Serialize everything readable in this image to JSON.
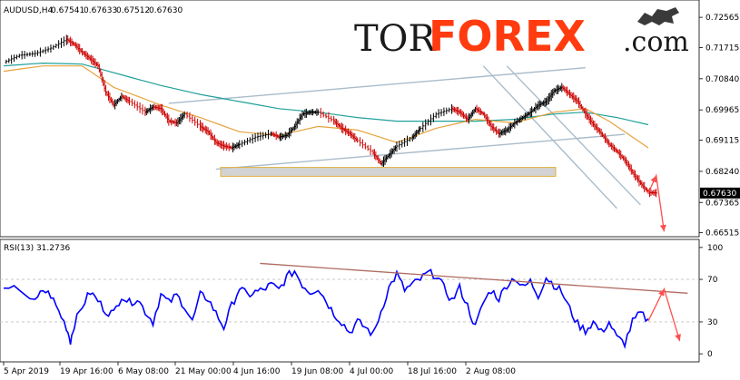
{
  "chart_data": [
    {
      "type": "line",
      "header": "AUDUSD,H4",
      "ohlc": [
        "0.67541",
        "0.67633",
        "0.67512",
        "0.67630"
      ],
      "last_price": "0.67630",
      "y_ticks": [
        "0.72565",
        "0.71715",
        "0.70840",
        "0.69965",
        "0.69115",
        "0.68240",
        "0.67365",
        "0.66515"
      ],
      "y_tick_values": [
        0.72565,
        0.71715,
        0.7084,
        0.69965,
        0.69115,
        0.6824,
        0.67365,
        0.66515
      ],
      "ylim": [
        0.6648,
        0.7295
      ],
      "x_labels": [
        "5 Apr 2019",
        "19 Apr 16:00",
        "6 May 08:00",
        "21 May 00:00",
        "4 Jun 16:00",
        "19 Jun 08:00",
        "4 Jul 00:00",
        "18 Jul 16:00",
        "2 Aug 08:00"
      ],
      "price_keypoints": [
        [
          0,
          0.713
        ],
        [
          2,
          0.715
        ],
        [
          4,
          0.7155
        ],
        [
          6,
          0.717
        ],
        [
          8,
          0.7195
        ],
        [
          9,
          0.718
        ],
        [
          10,
          0.7158
        ],
        [
          11,
          0.714
        ],
        [
          12,
          0.712
        ],
        [
          13,
          0.7045
        ],
        [
          14,
          0.701
        ],
        [
          15,
          0.7035
        ],
        [
          16,
          0.702
        ],
        [
          18,
          0.699
        ],
        [
          19,
          0.7005
        ],
        [
          20,
          0.7
        ],
        [
          21,
          0.6965
        ],
        [
          22,
          0.696
        ],
        [
          23,
          0.6985
        ],
        [
          25,
          0.695
        ],
        [
          26,
          0.6935
        ],
        [
          27,
          0.6905
        ],
        [
          28,
          0.6895
        ],
        [
          29,
          0.689
        ],
        [
          30,
          0.69
        ],
        [
          32,
          0.692
        ],
        [
          34,
          0.693
        ],
        [
          35,
          0.692
        ],
        [
          36,
          0.6925
        ],
        [
          37,
          0.695
        ],
        [
          38,
          0.6985
        ],
        [
          39,
          0.699
        ],
        [
          40,
          0.699
        ],
        [
          42,
          0.6965
        ],
        [
          43,
          0.6945
        ],
        [
          44,
          0.693
        ],
        [
          45,
          0.691
        ],
        [
          47,
          0.6875
        ],
        [
          48,
          0.6845
        ],
        [
          49,
          0.687
        ],
        [
          50,
          0.6895
        ],
        [
          52,
          0.692
        ],
        [
          53,
          0.6945
        ],
        [
          55,
          0.6985
        ],
        [
          57,
          0.7
        ],
        [
          58,
          0.699
        ],
        [
          59,
          0.697
        ],
        [
          60,
          0.7
        ],
        [
          61,
          0.6985
        ],
        [
          62,
          0.695
        ],
        [
          63,
          0.693
        ],
        [
          64,
          0.694
        ],
        [
          65,
          0.696
        ],
        [
          66,
          0.6975
        ],
        [
          67,
          0.699
        ],
        [
          68,
          0.701
        ],
        [
          69,
          0.702
        ],
        [
          70,
          0.705
        ],
        [
          71,
          0.706
        ],
        [
          72,
          0.704
        ],
        [
          73,
          0.702
        ],
        [
          74,
          0.6985
        ],
        [
          75,
          0.6955
        ],
        [
          76,
          0.693
        ],
        [
          77,
          0.69
        ],
        [
          78,
          0.688
        ],
        [
          79,
          0.6855
        ],
        [
          80,
          0.682
        ],
        [
          81,
          0.679
        ],
        [
          82,
          0.6765
        ],
        [
          83,
          0.6763
        ]
      ],
      "ma_fast": [
        [
          0,
          0.7105
        ],
        [
          5,
          0.712
        ],
        [
          10,
          0.712
        ],
        [
          14,
          0.706
        ],
        [
          20,
          0.701
        ],
        [
          25,
          0.6975
        ],
        [
          30,
          0.6935
        ],
        [
          35,
          0.6925
        ],
        [
          40,
          0.695
        ],
        [
          45,
          0.694
        ],
        [
          50,
          0.6905
        ],
        [
          55,
          0.6945
        ],
        [
          60,
          0.697
        ],
        [
          65,
          0.696
        ],
        [
          70,
          0.699
        ],
        [
          74,
          0.7
        ],
        [
          77,
          0.6965
        ],
        [
          80,
          0.692
        ],
        [
          82,
          0.689
        ]
      ],
      "ma_slow": [
        [
          0,
          0.712
        ],
        [
          5,
          0.7128
        ],
        [
          10,
          0.7125
        ],
        [
          15,
          0.7095
        ],
        [
          20,
          0.7065
        ],
        [
          25,
          0.704
        ],
        [
          30,
          0.702
        ],
        [
          35,
          0.7
        ],
        [
          40,
          0.699
        ],
        [
          45,
          0.6975
        ],
        [
          50,
          0.6965
        ],
        [
          55,
          0.6965
        ],
        [
          60,
          0.6965
        ],
        [
          65,
          0.697
        ],
        [
          70,
          0.6985
        ],
        [
          74,
          0.699
        ],
        [
          78,
          0.6975
        ],
        [
          82,
          0.6955
        ]
      ],
      "channel_upper": [
        [
          21,
          0.7015
        ],
        [
          74,
          0.7115
        ]
      ],
      "channel_lower": [
        [
          27,
          0.683
        ],
        [
          79,
          0.6928
        ]
      ],
      "down_channel_a": [
        [
          61,
          0.712
        ],
        [
          78,
          0.672
        ]
      ],
      "down_channel_b": [
        [
          64,
          0.712
        ],
        [
          81,
          0.673
        ]
      ],
      "support_zone": [
        0.681,
        0.6835
      ],
      "projection": [
        [
          82,
          0.6763
        ],
        [
          83,
          0.6812
        ],
        [
          84,
          0.6655
        ]
      ],
      "colors": {
        "price": "#000000",
        "down": "#cc0000",
        "ma_fast": "#e6a23c",
        "ma_slow": "#20a09a",
        "channel": "#a9bccb",
        "zone_fill": "#c8c8c8",
        "zone_border": "#e0b040",
        "arrow": "#ff4d4d"
      }
    },
    {
      "type": "line",
      "header": "RSI(13) 31.2736",
      "y_ticks": [
        "100",
        "70",
        "30",
        "0"
      ],
      "y_tick_values": [
        100,
        70,
        30,
        0
      ],
      "levels": [
        70,
        30
      ],
      "ylim": [
        -5,
        105
      ],
      "rsi_keypoints": [
        [
          0,
          58
        ],
        [
          2,
          62
        ],
        [
          4,
          48
        ],
        [
          5,
          60
        ],
        [
          6,
          55
        ],
        [
          7,
          40
        ],
        [
          8,
          25
        ],
        [
          8.5,
          12
        ],
        [
          9,
          28
        ],
        [
          10,
          45
        ],
        [
          11,
          58
        ],
        [
          12,
          50
        ],
        [
          13,
          40
        ],
        [
          14,
          38
        ],
        [
          15,
          55
        ],
        [
          16,
          48
        ],
        [
          17,
          52
        ],
        [
          18,
          40
        ],
        [
          19,
          30
        ],
        [
          20,
          56
        ],
        [
          21,
          48
        ],
        [
          22,
          55
        ],
        [
          23,
          45
        ],
        [
          24,
          30
        ],
        [
          25,
          55
        ],
        [
          26,
          52
        ],
        [
          27,
          38
        ],
        [
          28,
          25
        ],
        [
          29,
          45
        ],
        [
          30,
          62
        ],
        [
          31,
          55
        ],
        [
          32,
          58
        ],
        [
          33,
          60
        ],
        [
          34,
          65
        ],
        [
          35,
          60
        ],
        [
          36,
          72
        ],
        [
          37,
          78
        ],
        [
          38,
          65
        ],
        [
          39,
          58
        ],
        [
          40,
          62
        ],
        [
          41,
          50
        ],
        [
          42,
          38
        ],
        [
          43,
          30
        ],
        [
          44,
          20
        ],
        [
          45,
          30
        ],
        [
          46,
          25
        ],
        [
          47,
          18
        ],
        [
          48,
          40
        ],
        [
          49,
          62
        ],
        [
          50,
          75
        ],
        [
          51,
          60
        ],
        [
          52,
          65
        ],
        [
          53,
          70
        ],
        [
          54,
          76
        ],
        [
          55,
          74
        ],
        [
          56,
          62
        ],
        [
          57,
          50
        ],
        [
          58,
          62
        ],
        [
          59,
          45
        ],
        [
          60,
          25
        ],
        [
          61,
          48
        ],
        [
          62,
          60
        ],
        [
          63,
          52
        ],
        [
          64,
          65
        ],
        [
          65,
          72
        ],
        [
          66,
          62
        ],
        [
          67,
          68
        ],
        [
          68,
          55
        ],
        [
          69,
          72
        ],
        [
          70,
          65
        ],
        [
          71,
          58
        ],
        [
          72,
          42
        ],
        [
          73,
          28
        ],
        [
          74,
          22
        ],
        [
          75,
          30
        ],
        [
          76,
          20
        ],
        [
          77,
          30
        ],
        [
          78,
          15
        ],
        [
          79,
          10
        ],
        [
          80,
          30
        ],
        [
          81,
          38
        ],
        [
          82,
          31
        ]
      ],
      "trendline": [
        [
          40,
          85
        ],
        [
          87,
          57
        ]
      ],
      "projection": [
        [
          82,
          31
        ],
        [
          84,
          61
        ],
        [
          86,
          12
        ]
      ],
      "colors": {
        "rsi": "#0000ff",
        "trend": "#b06a60",
        "arrow": "#ff4d4d",
        "level": "#c0c0c0"
      }
    }
  ],
  "logo": {
    "part1": "TOR",
    "part2": "FOREX",
    "part3": ".com"
  }
}
